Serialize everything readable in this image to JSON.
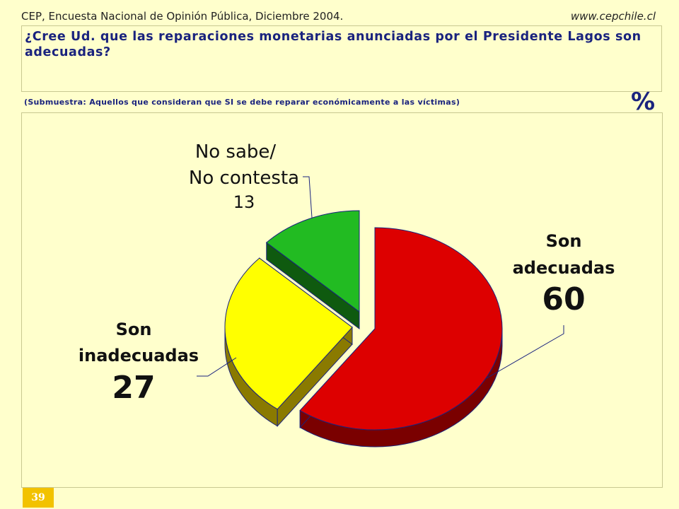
{
  "header": {
    "source": "CEP, Encuesta Nacional de Opinión Pública, Diciembre 2004.",
    "website": "www.cepchile.cl"
  },
  "question": "¿Cree Ud. que las reparaciones monetarias anunciadas por el Presidente Lagos son adecuadas?",
  "subsample_note": "(Submuestra: Aquellos que consideran que SI se debe reparar económicamente a las víctimas)",
  "unit_symbol": "%",
  "page_number": "39",
  "chart_data": {
    "type": "pie",
    "title": "",
    "slices": [
      {
        "label": "Son adecuadas",
        "value": 60,
        "color": "#dd0000",
        "side_color": "#7a0000"
      },
      {
        "label": "Son inadecuadas",
        "value": 27,
        "color": "#ffff00",
        "side_color": "#8a7a00"
      },
      {
        "label": "No sabe/ No contesta",
        "value": 13,
        "color": "#22bb22",
        "side_color": "#0f5a0f"
      }
    ],
    "label_lines": {
      "adecuadas": [
        "Son",
        "adecuadas"
      ],
      "inadecuadas": [
        "Son",
        "inadecuadas"
      ],
      "nosabe": [
        "No sabe/",
        "No contesta"
      ]
    }
  }
}
